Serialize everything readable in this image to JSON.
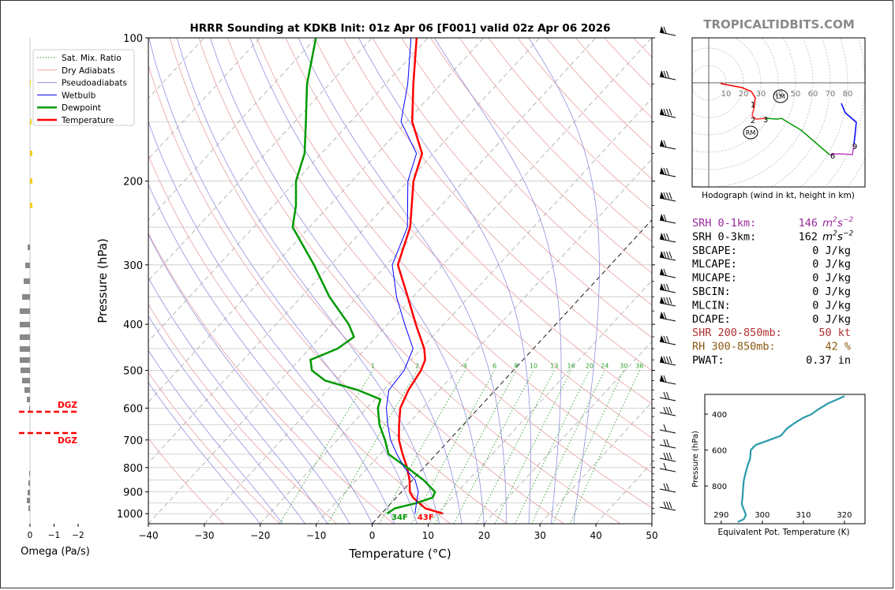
{
  "title": "HRRR Sounding at KDKB Init: 01z Apr 06 [F001] valid 02z Apr 06 2026",
  "watermark": "TROPICALTIDBITS.COM",
  "chart_data": [
    {
      "type": "skewt",
      "xlabel": "Temperature (°C)",
      "ylabel": "Pressure (hPa)",
      "xlim": [
        -40,
        50
      ],
      "ylim": [
        1050,
        100
      ],
      "y_scale": "log",
      "x_ticks": [
        -40,
        -30,
        -20,
        -10,
        0,
        10,
        20,
        30,
        40,
        50
      ],
      "y_ticks": [
        100,
        200,
        300,
        400,
        500,
        600,
        700,
        800,
        900,
        1000
      ],
      "grid": true,
      "legend_placement": "top-left",
      "legend": [
        {
          "label": "Sat. Mix. Ratio",
          "color": "#2ca02c",
          "style": "dotted"
        },
        {
          "label": "Dry Adiabats",
          "color": "#e8a0a0",
          "style": "solid"
        },
        {
          "label": "Pseudoadiabats",
          "color": "#9090e0",
          "style": "solid"
        },
        {
          "label": "Wetbulb",
          "color": "#0000ff",
          "style": "solid"
        },
        {
          "label": "Dewpoint",
          "color": "#009900",
          "style": "solid"
        },
        {
          "label": "Temperature",
          "color": "#ff0000",
          "style": "solid"
        }
      ],
      "mixing_ratio_labels": [
        "1",
        "2",
        "4",
        "6",
        "8",
        "10",
        "13",
        "16",
        "20",
        "24",
        "30",
        "36"
      ],
      "surface_dewpoint_label": "34F",
      "surface_temperature_label": "43F",
      "series": [
        {
          "name": "Temperature",
          "color": "#ff0000",
          "p": [
            1000,
            975,
            950,
            925,
            900,
            850,
            800,
            750,
            700,
            650,
            600,
            550,
            500,
            475,
            450,
            400,
            350,
            300,
            250,
            200,
            175,
            150,
            125,
            100
          ],
          "t": [
            11,
            7,
            5,
            3,
            1.5,
            -0.5,
            -3,
            -6,
            -9,
            -11.5,
            -14,
            -15.5,
            -16.5,
            -17.5,
            -19.5,
            -25,
            -31,
            -38,
            -42,
            -49,
            -52,
            -59,
            -65,
            -72
          ]
        },
        {
          "name": "Dewpoint",
          "color": "#009900",
          "p": [
            1000,
            975,
            950,
            925,
            900,
            850,
            800,
            750,
            700,
            650,
            600,
            575,
            550,
            525,
            500,
            475,
            450,
            425,
            400,
            350,
            300,
            250,
            225,
            200,
            175,
            150,
            125,
            100
          ],
          "t": [
            1,
            1.5,
            4.5,
            6.5,
            6,
            2,
            -3,
            -8.5,
            -11.5,
            -15,
            -18,
            -19,
            -24.5,
            -32,
            -36,
            -38,
            -35,
            -34,
            -37,
            -45,
            -53,
            -63,
            -66,
            -70,
            -73,
            -78,
            -84,
            -90
          ]
        },
        {
          "name": "Wetbulb",
          "color": "#0000ff",
          "p": [
            1000,
            950,
            900,
            850,
            800,
            750,
            700,
            650,
            600,
            550,
            500,
            450,
            400,
            350,
            300,
            250,
            200,
            175,
            150,
            125,
            100
          ],
          "t": [
            6,
            4.5,
            3,
            0.5,
            -3.5,
            -7,
            -10.5,
            -13.5,
            -16.5,
            -19,
            -19.5,
            -21.5,
            -27,
            -33,
            -39,
            -42.5,
            -50,
            -53,
            -61,
            -66,
            -73
          ]
        }
      ],
      "wind_barbs_column": "right"
    },
    {
      "type": "bar",
      "xlabel": "Omega (Pa/s)",
      "x_ticks": [
        "0",
        "−1",
        "−2"
      ],
      "annotations": [
        "DGZ",
        "DGZ"
      ]
    },
    {
      "type": "line",
      "title": "Hodograph (wind in kt, height in km)",
      "ring_labels": [
        "10",
        "20",
        "30",
        "40",
        "50",
        "60",
        "70",
        "80"
      ],
      "height_labels": [
        "1",
        "2",
        "3",
        "6",
        "9"
      ],
      "markers": [
        "LM",
        "RM"
      ]
    },
    {
      "type": "line",
      "xlabel": "Equivalent Pot. Temperature (K)",
      "ylabel": "Pressure (hPa)",
      "x_ticks": [
        "290",
        "300",
        "310",
        "320"
      ],
      "y_ticks": [
        "400",
        "600",
        "800"
      ],
      "color": "#2a9aaa"
    }
  ],
  "params": [
    {
      "label": "SRH 0-1km:",
      "value": "146",
      "unit": "m2s-2",
      "color": "#9a2a9a"
    },
    {
      "label": "SRH 0-3km:",
      "value": "162",
      "unit": "m2s-2",
      "color": "#000000"
    },
    {
      "label": "SBCAPE:",
      "value": "0 J/kg",
      "color": "#000000"
    },
    {
      "label": "MLCAPE:",
      "value": "0 J/kg",
      "color": "#000000"
    },
    {
      "label": "MUCAPE:",
      "value": "0 J/kg",
      "color": "#000000"
    },
    {
      "label": "SBCIN:",
      "value": "0 J/kg",
      "color": "#000000"
    },
    {
      "label": "MLCIN:",
      "value": "0 J/kg",
      "color": "#000000"
    },
    {
      "label": "DCAPE:",
      "value": "0 J/kg",
      "color": "#000000"
    },
    {
      "label": "SHR 200-850mb:",
      "value": "50 kt",
      "color": "#b03030"
    },
    {
      "label": "RH 300-850mb:",
      "value": "42 %",
      "color": "#8a5a10"
    },
    {
      "label": "PWAT:",
      "value": "0.37 in",
      "color": "#000000"
    }
  ]
}
